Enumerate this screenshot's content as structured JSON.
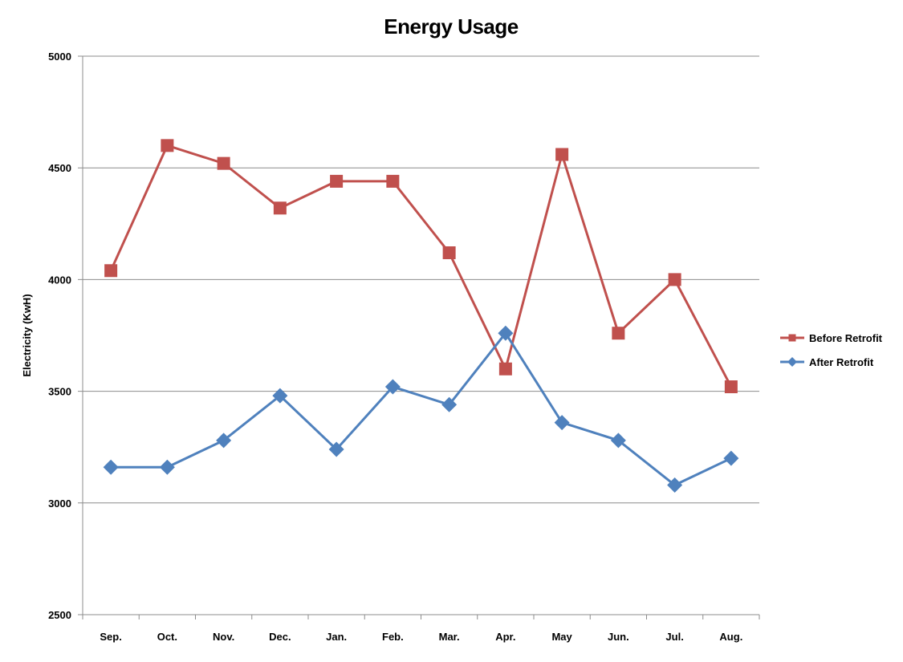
{
  "chart_data": {
    "type": "line",
    "title": "Energy Usage",
    "xlabel": "",
    "ylabel": "Electricity (KwH)",
    "categories": [
      "Sep.",
      "Oct.",
      "Nov.",
      "Dec.",
      "Jan.",
      "Feb.",
      "Mar.",
      "Apr.",
      "May",
      "Jun.",
      "Jul.",
      "Aug."
    ],
    "ylim": [
      2500,
      5000
    ],
    "yticks": [
      2500,
      3000,
      3500,
      4000,
      4500,
      5000
    ],
    "grid": true,
    "legend_position": "right",
    "series": [
      {
        "name": "Before Retrofit",
        "color": "#c0504d",
        "marker": "square",
        "values": [
          4040,
          4600,
          4520,
          4320,
          4440,
          4440,
          4120,
          3600,
          4560,
          3760,
          4000,
          3520
        ]
      },
      {
        "name": "After Retrofit",
        "color": "#4f81bd",
        "marker": "diamond",
        "values": [
          3160,
          3160,
          3280,
          3480,
          3240,
          3520,
          3440,
          3760,
          3360,
          3280,
          3080,
          3200
        ]
      }
    ]
  }
}
